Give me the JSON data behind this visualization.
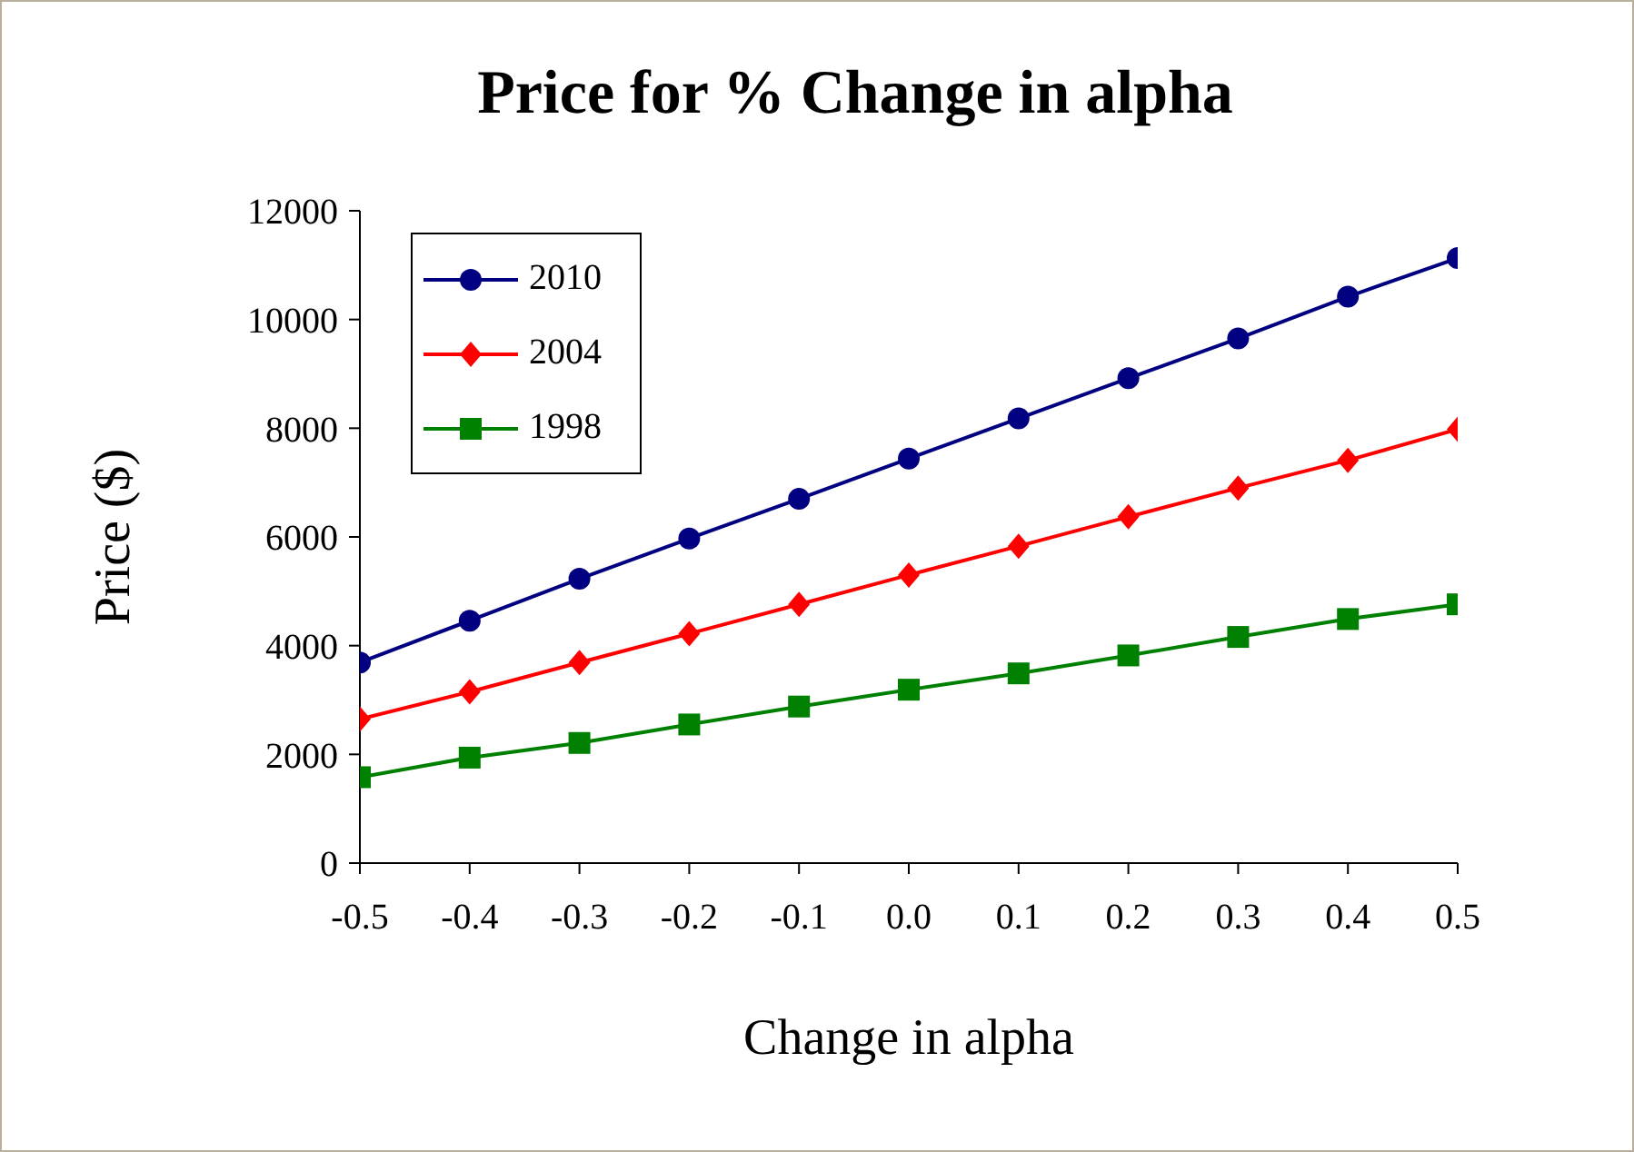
{
  "chart_data": {
    "type": "line",
    "title": "Price for % Change in alpha",
    "xlabel": "Change in alpha",
    "ylabel": "Price ($)",
    "x": [
      -0.5,
      -0.4,
      -0.3,
      -0.2,
      -0.1,
      0,
      0.1,
      0.2,
      0.3,
      0.4,
      0.5
    ],
    "series": [
      {
        "name": "2010",
        "color": "#000080",
        "marker": "circle",
        "values": [
          3690,
          4460,
          5230,
          5970,
          6700,
          7440,
          8180,
          8920,
          9650,
          10420,
          11130
        ]
      },
      {
        "name": "2004",
        "color": "#ff0000",
        "marker": "diamond",
        "values": [
          2650,
          3150,
          3690,
          4220,
          4760,
          5300,
          5830,
          6370,
          6900,
          7410,
          7980
        ]
      },
      {
        "name": "1998",
        "color": "#008000",
        "marker": "square",
        "values": [
          1580,
          1940,
          2210,
          2550,
          2880,
          3190,
          3490,
          3820,
          4160,
          4490,
          4760
        ]
      }
    ],
    "xlim": [
      -0.5,
      0.5
    ],
    "xticks": [
      -0.5,
      -0.4,
      -0.3,
      -0.2,
      -0.1,
      {
        "value": 0,
        "label": "0.0"
      },
      0.1,
      0.2,
      0.3,
      0.4,
      0.5
    ],
    "ylim": [
      0,
      12000
    ],
    "yticks": [
      0,
      2000,
      4000,
      6000,
      8000,
      10000,
      12000
    ],
    "grid": false,
    "legend": "top left",
    "line_style": "solid"
  }
}
